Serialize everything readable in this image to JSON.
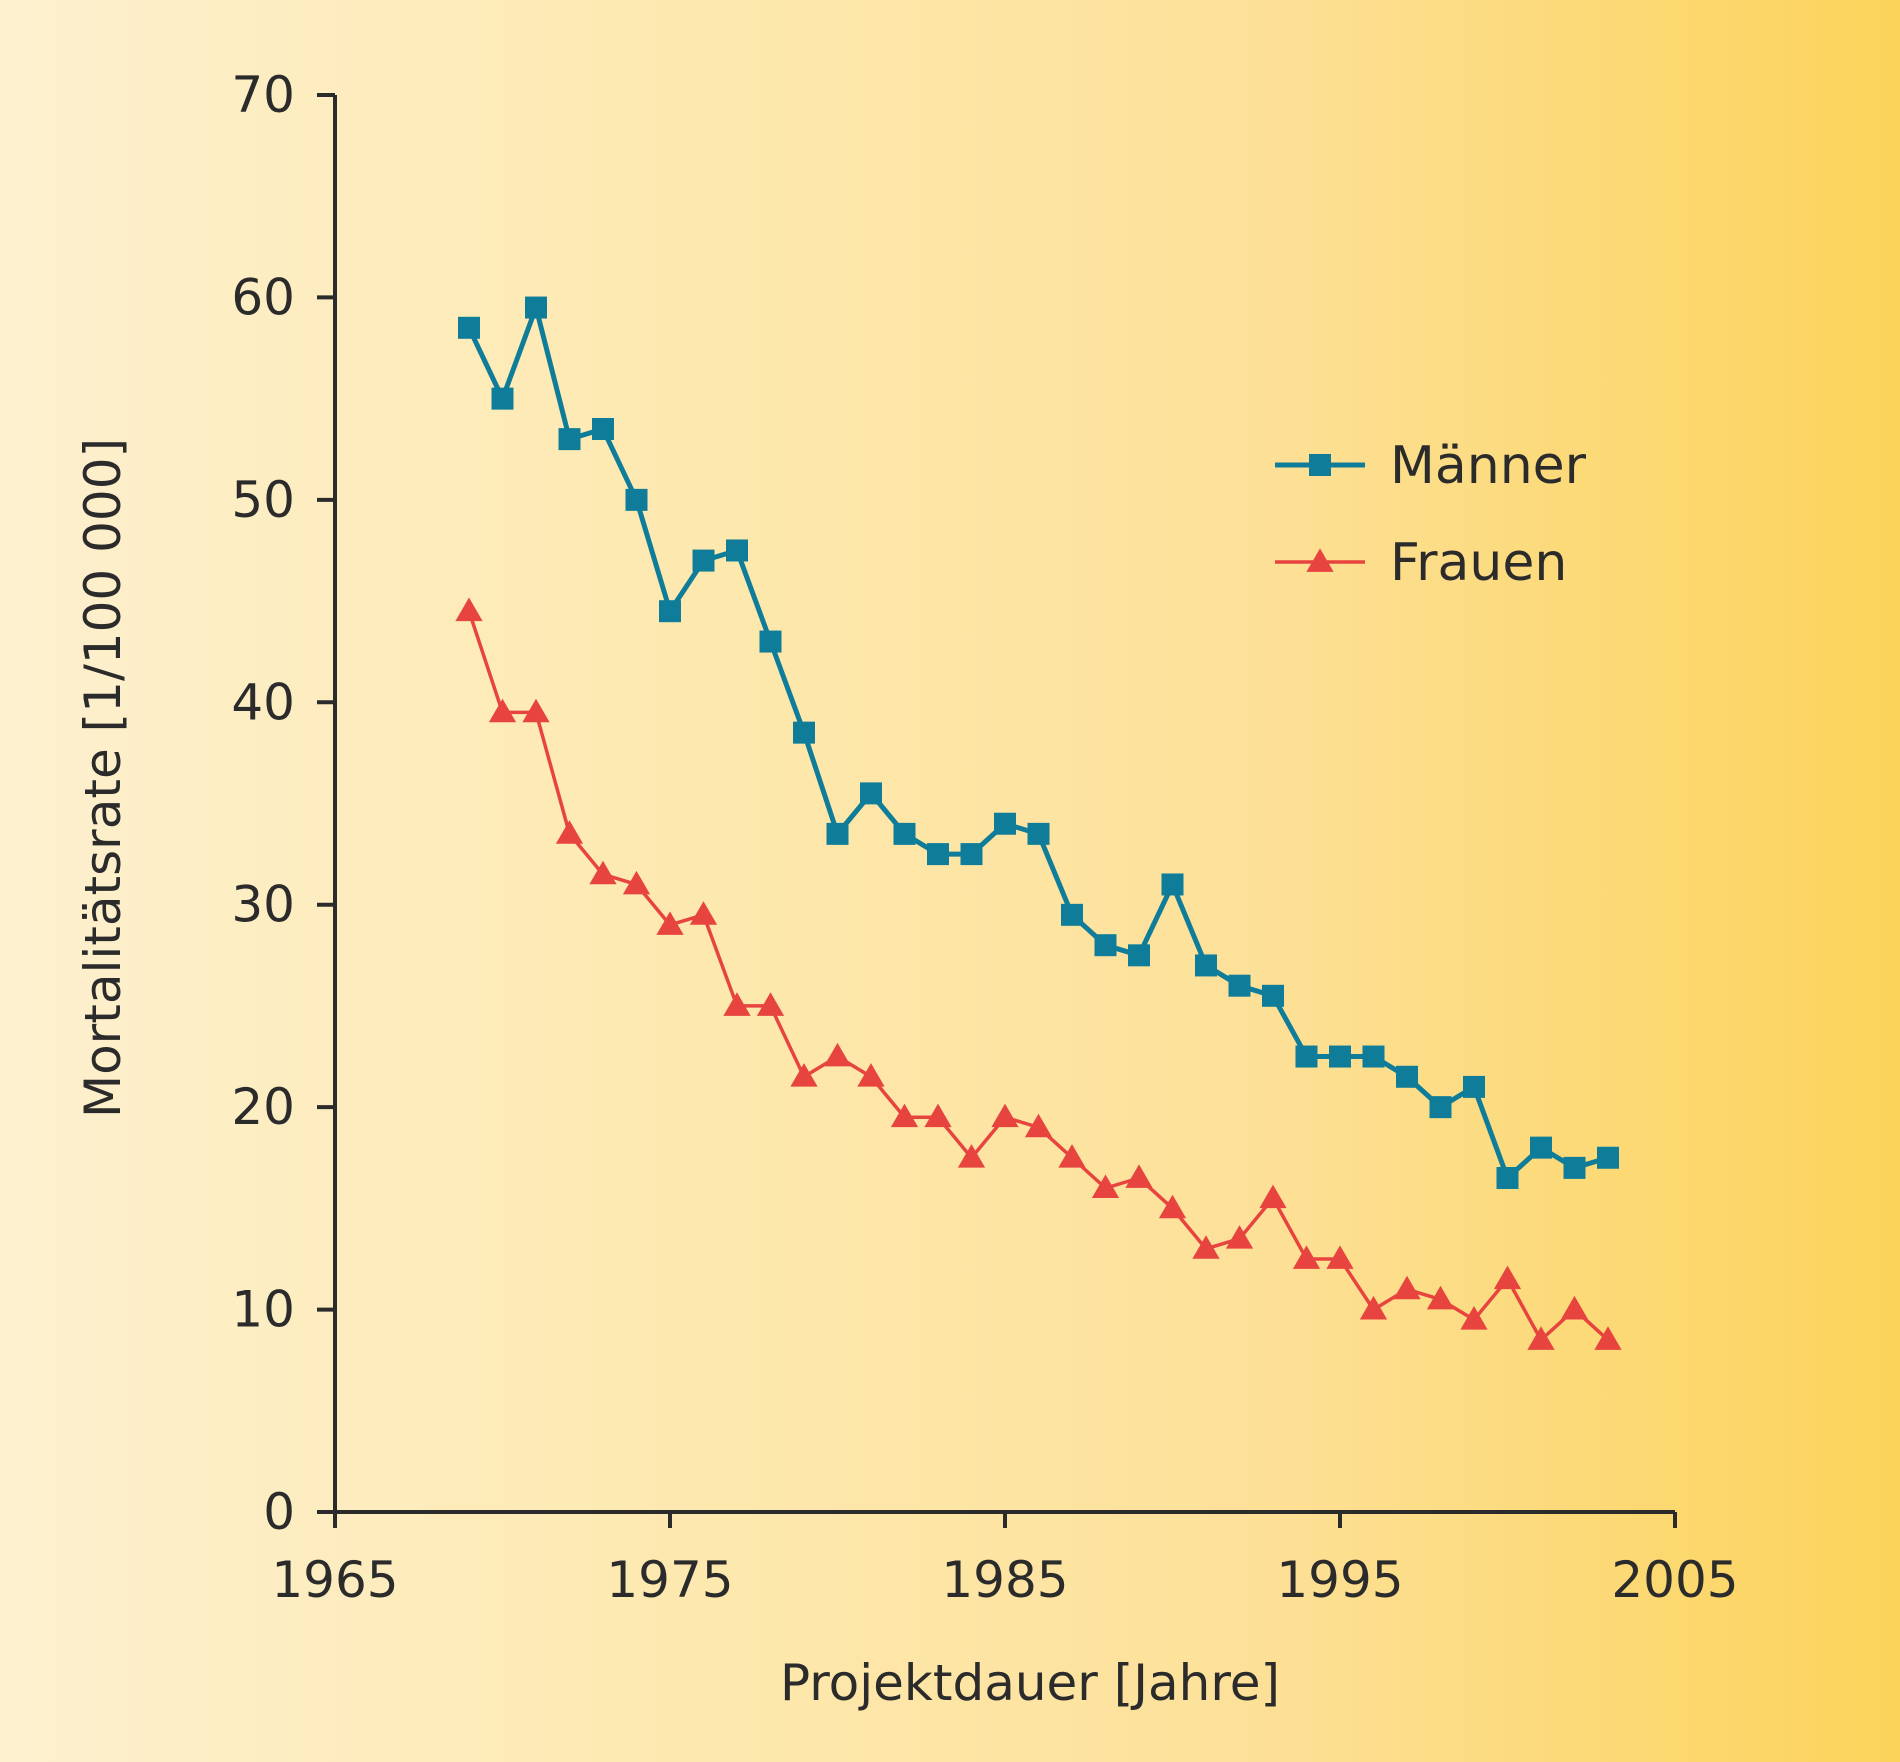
{
  "colors": {
    "maenner": "#0f7d99",
    "frauen": "#e8443f",
    "axis": "#2b2b2b"
  },
  "chart_data": {
    "type": "line",
    "title": "",
    "xlabel": "Projektdauer [Jahre]",
    "ylabel": "Mortalitätsrate [1/100 000]",
    "xlim": [
      1965,
      2005
    ],
    "ylim": [
      0,
      70
    ],
    "xticks": [
      1965,
      1975,
      1985,
      1995,
      2005
    ],
    "yticks": [
      0,
      10,
      20,
      30,
      40,
      50,
      60,
      70
    ],
    "grid": false,
    "legend_position": "top-right",
    "series": [
      {
        "name": "Männer",
        "marker": "square",
        "x": [
          1969,
          1970,
          1971,
          1972,
          1973,
          1974,
          1975,
          1976,
          1977,
          1978,
          1979,
          1980,
          1981,
          1982,
          1983,
          1984,
          1985,
          1986,
          1987,
          1988,
          1989,
          1990,
          1991,
          1992,
          1993,
          1994,
          1995,
          1996,
          1997,
          1998,
          1999,
          2000,
          2001,
          2002,
          2003
        ],
        "values": [
          58.5,
          55,
          59.5,
          53,
          53.5,
          50,
          44.5,
          47,
          47.5,
          43,
          38.5,
          33.5,
          35.5,
          33.5,
          32.5,
          32.5,
          34,
          33.5,
          29.5,
          28,
          27.5,
          31,
          27,
          26,
          25.5,
          22.5,
          22.5,
          22.5,
          21.5,
          20,
          21,
          16.5,
          18,
          17,
          17.5
        ]
      },
      {
        "name": "Frauen",
        "marker": "triangle",
        "x": [
          1969,
          1970,
          1971,
          1972,
          1973,
          1974,
          1975,
          1976,
          1977,
          1978,
          1979,
          1980,
          1981,
          1982,
          1983,
          1984,
          1985,
          1986,
          1987,
          1988,
          1989,
          1990,
          1991,
          1992,
          1993,
          1994,
          1995,
          1996,
          1997,
          1998,
          1999,
          2000,
          2001,
          2002,
          2003
        ],
        "values": [
          44.5,
          39.5,
          39.5,
          33.5,
          31.5,
          31,
          29,
          29.5,
          25,
          25,
          21.5,
          22.5,
          21.5,
          19.5,
          19.5,
          17.5,
          19.5,
          19,
          17.5,
          16,
          16.5,
          15,
          13,
          13.5,
          15.5,
          12.5,
          12.5,
          10,
          11,
          10.5,
          9.5,
          11.5,
          8.5,
          10,
          8.5
        ]
      }
    ]
  }
}
